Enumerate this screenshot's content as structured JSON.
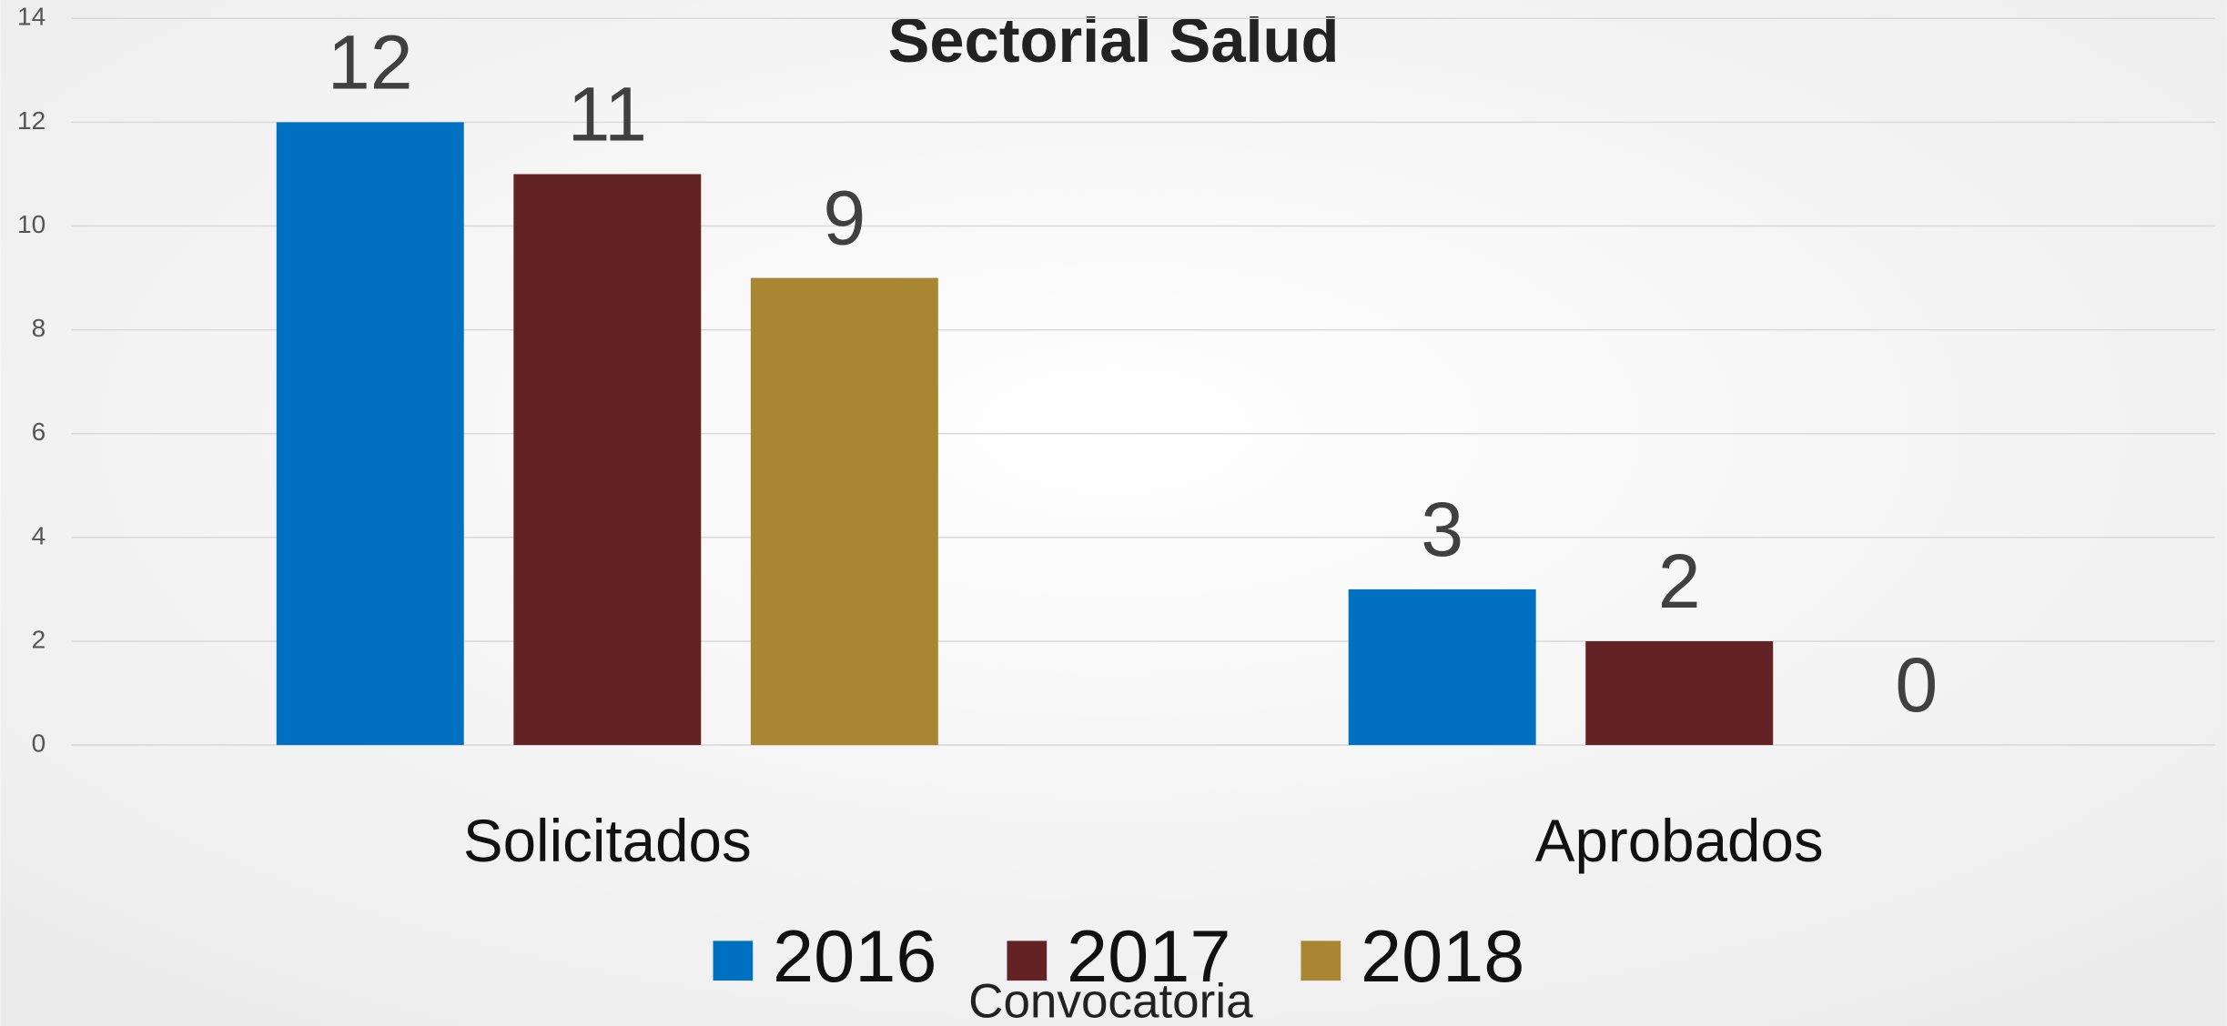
{
  "chart_data": {
    "type": "bar",
    "title": "Sectorial Salud",
    "x_label": "Convocatoria",
    "categories": [
      "Solicitados",
      "Aprobados"
    ],
    "series": [
      {
        "name": "2016",
        "color": "#0070c0",
        "values": [
          12,
          3
        ]
      },
      {
        "name": "2017",
        "color": "#632325",
        "values": [
          11,
          2
        ]
      },
      {
        "name": "2018",
        "color": "#a98732",
        "values": [
          9,
          0
        ]
      }
    ],
    "ylim": [
      0,
      14
    ],
    "yticks": [
      0,
      2,
      4,
      6,
      8,
      10,
      12,
      14
    ],
    "grid": true,
    "legend": "bottom"
  }
}
